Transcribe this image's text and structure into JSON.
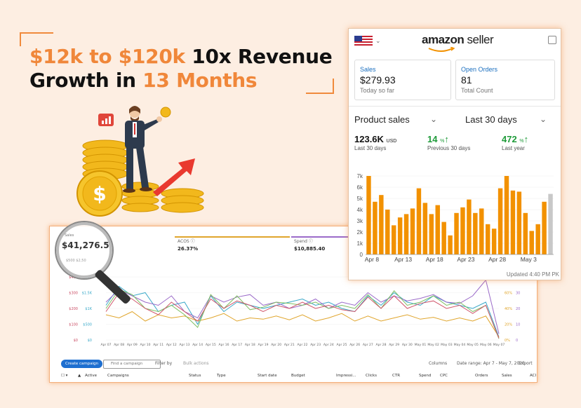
{
  "headline": {
    "part1": "$12k to $120k",
    "part2": " 10x Revenue",
    "part3": "Growth in ",
    "part4": "13 Months"
  },
  "colors": {
    "accent": "#f0873a",
    "bar": "#f29100",
    "bar_last": "#c8c8c8"
  },
  "seller": {
    "logo_amazon": "amazon",
    "logo_seller": " seller",
    "sales_title": "Sales",
    "sales_value": "$279.93",
    "sales_sub": "Today so far",
    "orders_title": "Open Orders",
    "orders_value": "81",
    "orders_sub": "Total Count",
    "dropdown_left": "Product sales",
    "dropdown_right": "Last 30 days",
    "stat1_value": "123.6K",
    "stat1_unit": "USD",
    "stat1_label": "Last 30 days",
    "stat2_value": "14",
    "stat2_unit": "%",
    "stat2_label": "Previous 30 days",
    "stat3_value": "472",
    "stat3_unit": "%",
    "stat3_label": "Last year",
    "updated": "Updated 4:40 PM PK"
  },
  "chart_data": {
    "type": "bar",
    "title": "",
    "x_ticks": [
      "Apr 8",
      "Apr 13",
      "Apr 18",
      "Apr 23",
      "Apr 28",
      "May 3"
    ],
    "y_ticks": [
      "0",
      "1k",
      "2k",
      "3k",
      "4k",
      "5k",
      "6k",
      "7k"
    ],
    "ylim": [
      0,
      7000
    ],
    "values": [
      7000,
      4700,
      5300,
      4000,
      2600,
      3300,
      3600,
      4100,
      5900,
      4600,
      3600,
      4400,
      2900,
      1700,
      3700,
      4200,
      4900,
      3700,
      4100,
      2700,
      2300,
      5900,
      7000,
      5700,
      5600,
      3700,
      2100,
      2700,
      4700,
      5400
    ],
    "last_bar_partial": true
  },
  "magnifier": {
    "label": "Sales",
    "value": "$41,276.52",
    "sub": "$500   $2,50"
  },
  "ads": {
    "metric_acos_label": "ACOS",
    "metric_acos_value": "26.37%",
    "metric_spend_label": "Spend",
    "metric_spend_value": "$10,885.40",
    "y_left_ticks": [
      "$400",
      "$300",
      "$200",
      "$100",
      "$0"
    ],
    "y_left2_ticks": [
      "$2K",
      "$1.5K",
      "$1K",
      "$500",
      "$0"
    ],
    "y_right_ticks": [
      "80%",
      "60%",
      "40%",
      "20%",
      "0%"
    ],
    "y_right2_ticks": [
      "40",
      "30",
      "20",
      "10",
      "0"
    ],
    "x_ticks": [
      "Apr 07",
      "Apr 08",
      "Apr 09",
      "Apr 10",
      "Apr 11",
      "Apr 12",
      "Apr 13",
      "Apr 14",
      "Apr 15",
      "Apr 16",
      "Apr 17",
      "Apr 18",
      "Apr 19",
      "Apr 20",
      "Apr 21",
      "Apr 22",
      "Apr 23",
      "Apr 24",
      "Apr 25",
      "Apr 26",
      "Apr 27",
      "Apr 28",
      "Apr 29",
      "Apr 30",
      "May 01",
      "May 02",
      "May 03",
      "May 04",
      "May 05",
      "May 06",
      "May 07"
    ],
    "series": [
      {
        "name": "",
        "color": "#3aa9c9",
        "values": [
          0.55,
          0.85,
          0.7,
          0.75,
          0.45,
          0.55,
          0.6,
          0.25,
          0.7,
          0.45,
          0.6,
          0.55,
          0.5,
          0.55,
          0.6,
          0.65,
          0.55,
          0.6,
          0.5,
          0.45,
          0.7,
          0.55,
          0.75,
          0.6,
          0.55,
          0.7,
          0.6,
          0.55,
          0.5,
          0.6,
          0.05
        ]
      },
      {
        "name": "",
        "color": "#9b6bc9",
        "values": [
          0.6,
          0.8,
          0.7,
          0.6,
          0.55,
          0.7,
          0.45,
          0.35,
          0.7,
          0.6,
          0.68,
          0.72,
          0.55,
          0.6,
          0.5,
          0.55,
          0.65,
          0.5,
          0.6,
          0.55,
          0.75,
          0.6,
          0.7,
          0.62,
          0.66,
          0.72,
          0.6,
          0.58,
          0.7,
          0.95,
          0.1
        ]
      },
      {
        "name": "",
        "color": "#e0a52c",
        "values": [
          0.4,
          0.35,
          0.45,
          0.3,
          0.4,
          0.35,
          0.38,
          0.3,
          0.35,
          0.42,
          0.3,
          0.35,
          0.33,
          0.38,
          0.32,
          0.4,
          0.3,
          0.35,
          0.42,
          0.3,
          0.38,
          0.3,
          0.35,
          0.4,
          0.33,
          0.36,
          0.3,
          0.35,
          0.3,
          0.38,
          0.05
        ]
      },
      {
        "name": "",
        "color": "#7fbf63",
        "values": [
          0.5,
          0.8,
          0.72,
          0.5,
          0.45,
          0.55,
          0.4,
          0.2,
          0.72,
          0.5,
          0.7,
          0.48,
          0.52,
          0.6,
          0.58,
          0.55,
          0.6,
          0.5,
          0.55,
          0.5,
          0.72,
          0.5,
          0.78,
          0.55,
          0.6,
          0.7,
          0.55,
          0.6,
          0.45,
          0.55,
          0.02
        ]
      },
      {
        "name": "",
        "color": "#d0556a",
        "values": [
          0.45,
          0.75,
          0.65,
          0.5,
          0.4,
          0.6,
          0.45,
          0.3,
          0.65,
          0.5,
          0.62,
          0.55,
          0.45,
          0.55,
          0.5,
          0.6,
          0.5,
          0.55,
          0.48,
          0.45,
          0.68,
          0.5,
          0.7,
          0.5,
          0.58,
          0.62,
          0.5,
          0.55,
          0.42,
          0.55,
          0.03
        ]
      }
    ],
    "create_campaign": "Create campaign",
    "find_campaign": "Find a campaign",
    "filter_by": "Filter by",
    "bulk_actions": "Bulk actions",
    "columns": "Columns",
    "date_range": "Date range: Apr 7 - May 7, 2025",
    "export": "Export",
    "table_headers": [
      "Active",
      "Campaigns",
      "Status",
      "Type",
      "Start date",
      "Budget",
      "Impressi...",
      "Clicks",
      "CTR",
      "Spend",
      "CPC",
      "Orders",
      "Sales",
      "ACI"
    ]
  }
}
